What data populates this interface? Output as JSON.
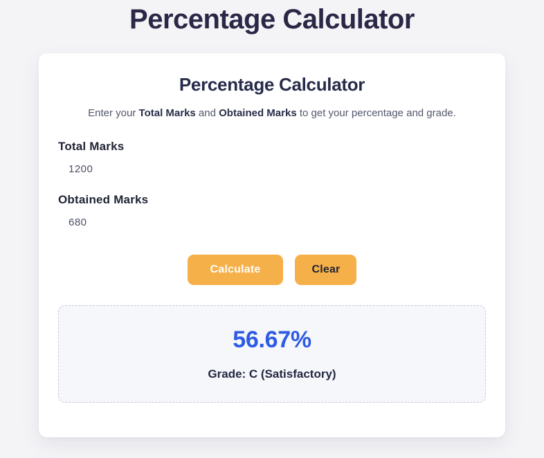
{
  "page": {
    "title": "Percentage Calculator"
  },
  "card": {
    "heading": "Percentage Calculator",
    "subtitle": {
      "prefix": "Enter your ",
      "bold1": "Total Marks",
      "middle": " and ",
      "bold2": "Obtained Marks",
      "suffix": " to get your percentage and grade."
    },
    "fields": [
      {
        "label": "Total Marks",
        "value": "1200"
      },
      {
        "label": "Obtained Marks",
        "value": "680"
      }
    ],
    "buttons": {
      "calculate": "Calculate",
      "clear": "Clear"
    },
    "result": {
      "percentage": "56.67%",
      "grade": "Grade: C (Satisfactory)"
    }
  },
  "colors": {
    "page_background": "#f4f4f7",
    "card_background": "#ffffff",
    "title_navy": "#2b2847",
    "button_amber": "#f6b04a",
    "result_blue": "#2e5be4",
    "result_box_background": "#f6f7fb",
    "result_box_border": "#c7c9d3"
  }
}
